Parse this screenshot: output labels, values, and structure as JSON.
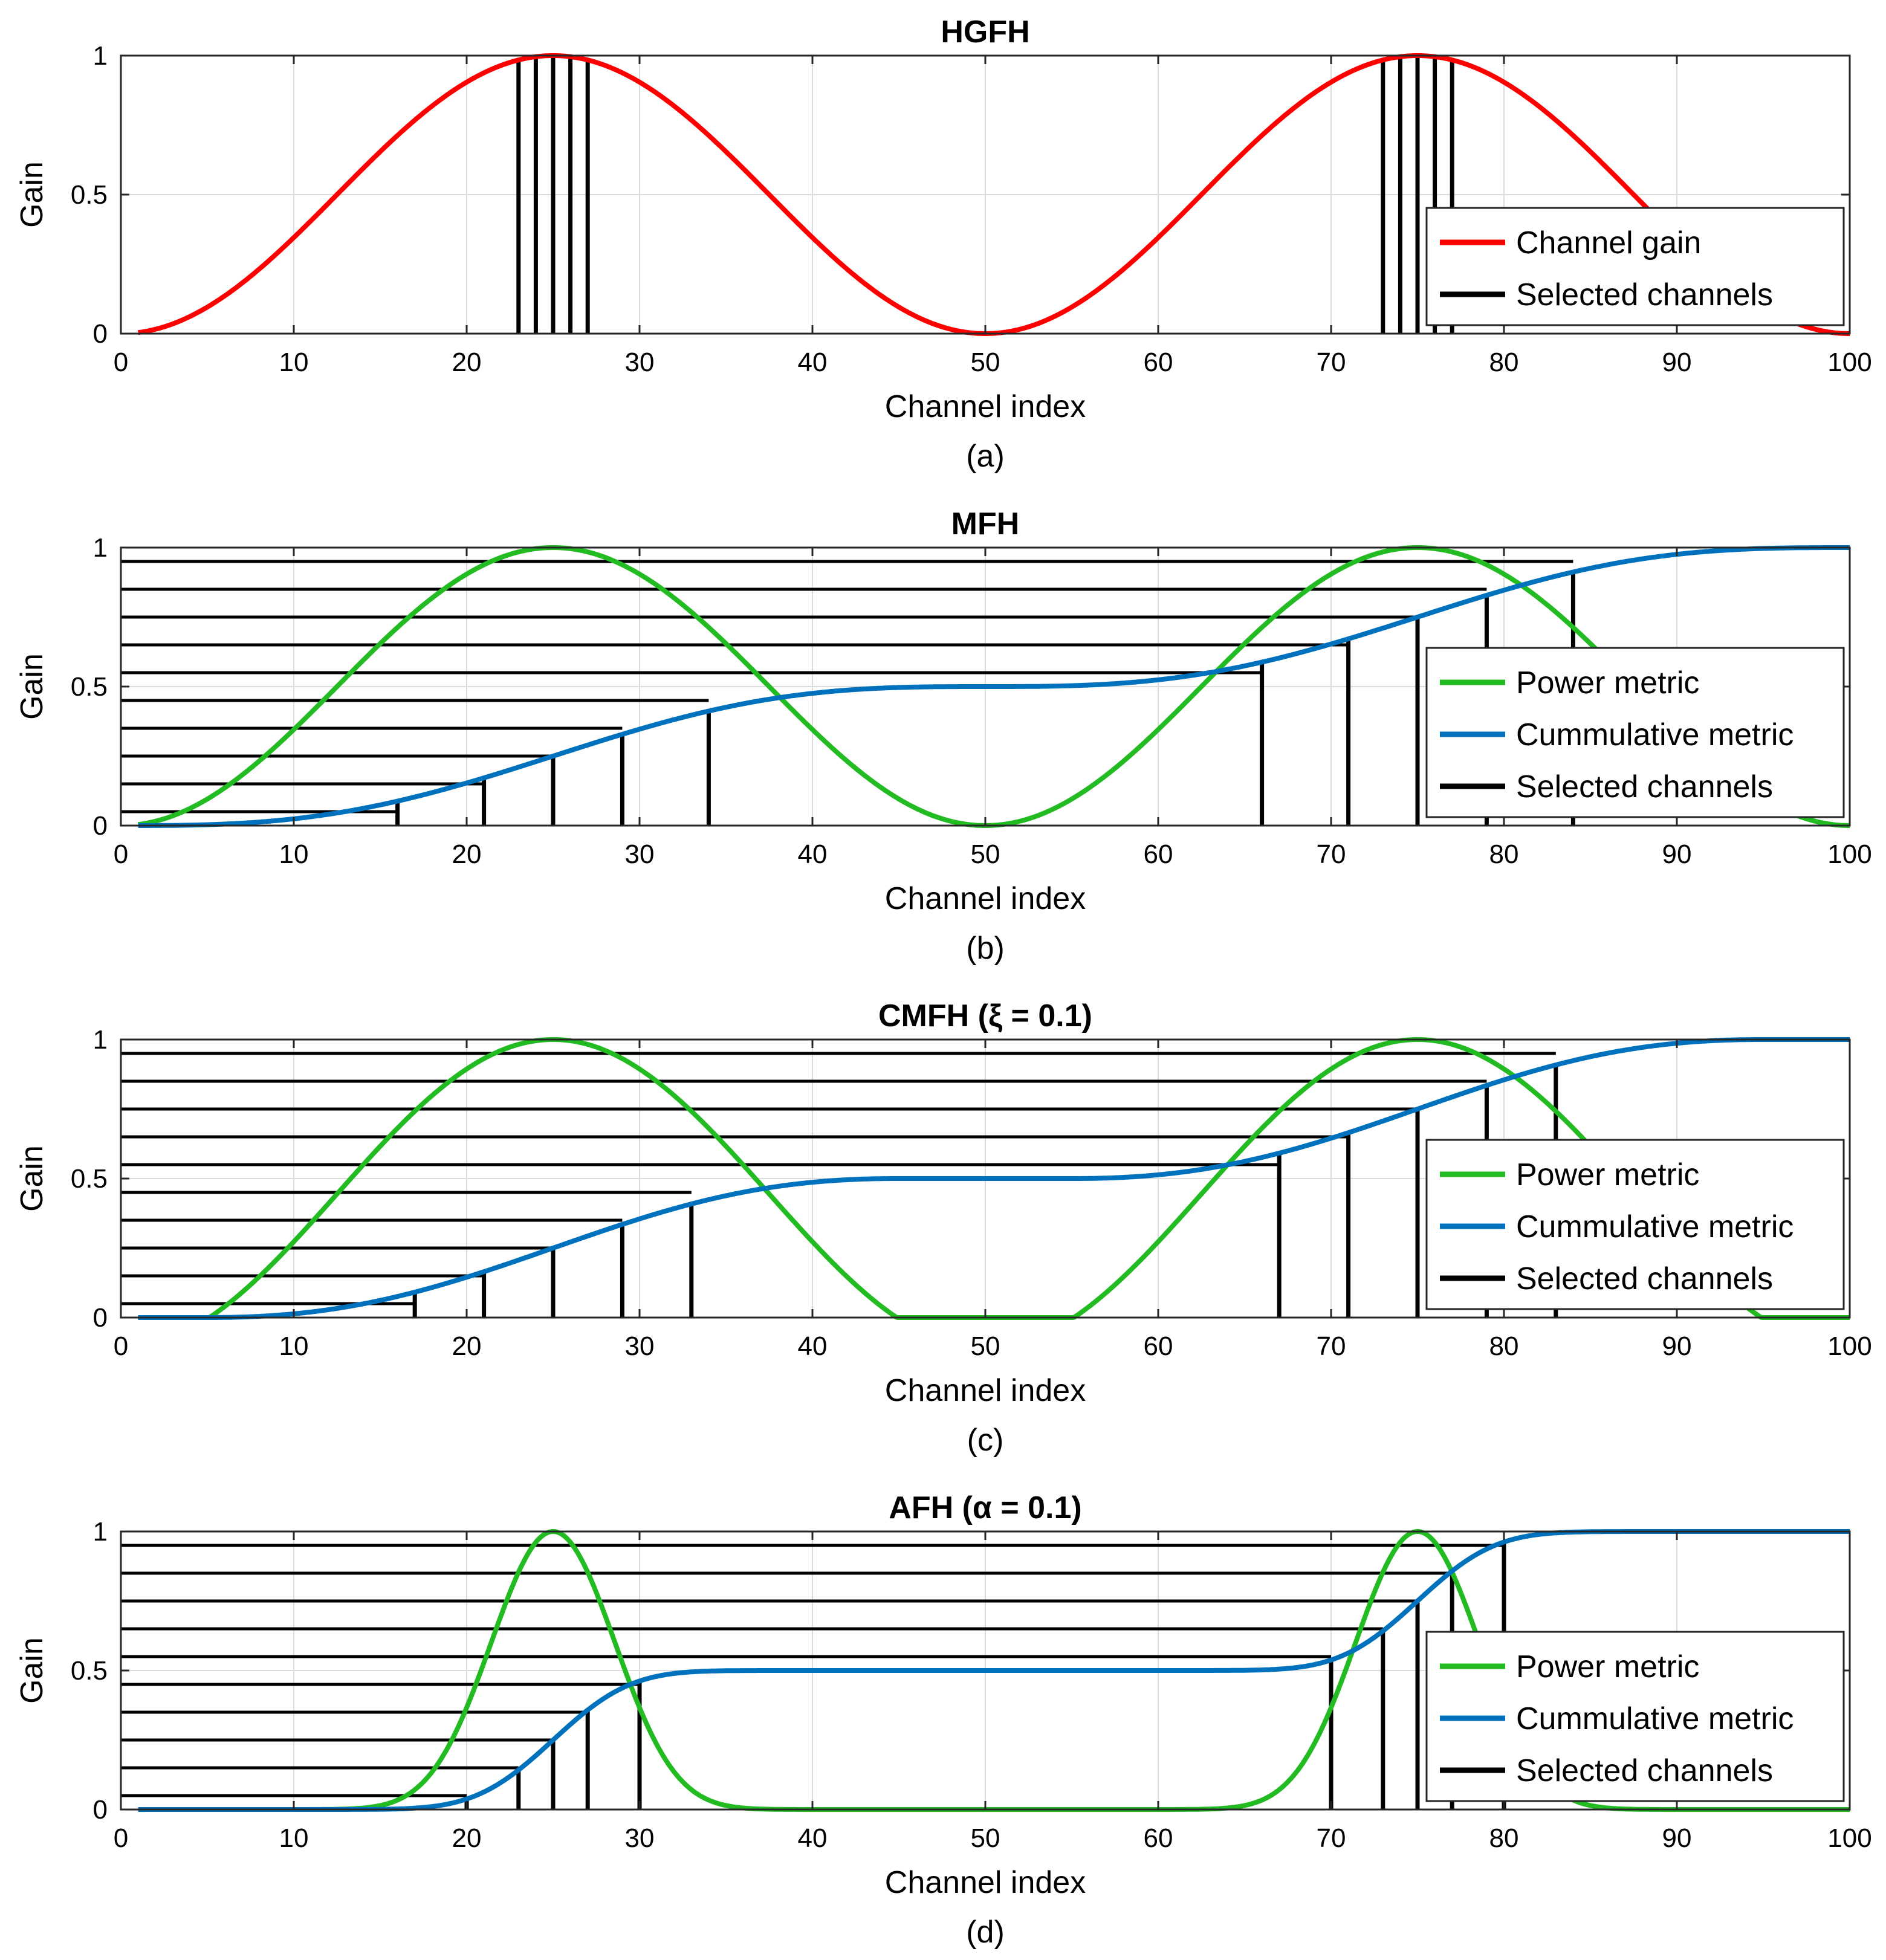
{
  "colors": {
    "red": "#ff0000",
    "green": "#22bb22",
    "blue": "#0072bd",
    "black": "#000000",
    "grid": "#dcdcdc"
  },
  "chart_data": [
    {
      "type": "line",
      "title": "HGFH",
      "caption": "(a)",
      "xlabel": "Channel index",
      "ylabel": "Gain",
      "xlim": [
        0,
        100
      ],
      "ylim": [
        0,
        1
      ],
      "xticks": [
        "0",
        "10",
        "20",
        "30",
        "40",
        "50",
        "60",
        "70",
        "80",
        "90",
        "100"
      ],
      "yticks": [
        "0",
        "0.5",
        "1"
      ],
      "grid": true,
      "legend_position": "bottom-right",
      "series": [
        {
          "name": "Channel gain",
          "role": "power",
          "color": "#ff0000",
          "curve": "two-hump-cosine",
          "sharpness": 1,
          "cutoff": 0
        },
        {
          "name": "Selected channels",
          "role": "selected",
          "color": "#000000",
          "stems": [
            23,
            24,
            25,
            26,
            27,
            73,
            74,
            75,
            76,
            77
          ]
        }
      ]
    },
    {
      "type": "line",
      "title": "MFH",
      "caption": "(b)",
      "xlabel": "Channel index",
      "ylabel": "Gain",
      "xlim": [
        0,
        100
      ],
      "ylim": [
        0,
        1
      ],
      "xticks": [
        "0",
        "10",
        "20",
        "30",
        "40",
        "50",
        "60",
        "70",
        "80",
        "90",
        "100"
      ],
      "yticks": [
        "0",
        "0.5",
        "1"
      ],
      "grid": true,
      "legend_position": "bottom-right",
      "levels": [
        0.05,
        0.15,
        0.25,
        0.35,
        0.45,
        0.55,
        0.65,
        0.75,
        0.85,
        0.95
      ],
      "series": [
        {
          "name": "Power metric",
          "role": "power",
          "color": "#22bb22",
          "curve": "two-hump-cosine",
          "sharpness": 1,
          "cutoff": 0
        },
        {
          "name": "Cummulative metric",
          "role": "cumulative",
          "color": "#0072bd"
        },
        {
          "name": "Selected channels",
          "role": "selected",
          "color": "#000000",
          "stems": [
            16,
            21,
            25,
            29,
            34,
            66,
            71,
            75,
            79,
            84
          ]
        }
      ]
    },
    {
      "type": "line",
      "title": "CMFH (ξ = 0.1)",
      "caption": "(c)",
      "xlabel": "Channel index",
      "ylabel": "Gain",
      "xlim": [
        0,
        100
      ],
      "ylim": [
        0,
        1
      ],
      "xticks": [
        "0",
        "10",
        "20",
        "30",
        "40",
        "50",
        "60",
        "70",
        "80",
        "90",
        "100"
      ],
      "yticks": [
        "0",
        "0.5",
        "1"
      ],
      "grid": true,
      "legend_position": "bottom-right",
      "levels": [
        0.05,
        0.15,
        0.25,
        0.35,
        0.45,
        0.55,
        0.65,
        0.75,
        0.85,
        0.95
      ],
      "series": [
        {
          "name": "Power metric",
          "role": "power",
          "color": "#22bb22",
          "curve": "two-hump-cosine",
          "sharpness": 1,
          "cutoff": 0.1
        },
        {
          "name": "Cummulative metric",
          "role": "cumulative",
          "color": "#0072bd"
        },
        {
          "name": "Selected channels",
          "role": "selected",
          "color": "#000000",
          "stems": [
            17,
            21,
            25,
            29,
            33,
            67,
            71,
            75,
            79,
            83
          ]
        }
      ]
    },
    {
      "type": "line",
      "title": "AFH (α = 0.1)",
      "caption": "(d)",
      "xlabel": "Channel index",
      "ylabel": "Gain",
      "xlim": [
        0,
        100
      ],
      "ylim": [
        0,
        1
      ],
      "xticks": [
        "0",
        "10",
        "20",
        "30",
        "40",
        "50",
        "60",
        "70",
        "80",
        "90",
        "100"
      ],
      "yticks": [
        "0",
        "0.5",
        "1"
      ],
      "grid": true,
      "legend_position": "bottom-right",
      "levels": [
        0.05,
        0.15,
        0.25,
        0.35,
        0.45,
        0.55,
        0.65,
        0.75,
        0.85,
        0.95
      ],
      "series": [
        {
          "name": "Power metric",
          "role": "power",
          "color": "#22bb22",
          "curve": "two-hump-cosine",
          "sharpness": 10,
          "cutoff": 0
        },
        {
          "name": "Cummulative metric",
          "role": "cumulative",
          "color": "#0072bd"
        },
        {
          "name": "Selected channels",
          "role": "selected",
          "color": "#000000",
          "stems": [
            20,
            23,
            25,
            27,
            30,
            70,
            73,
            75,
            77,
            80
          ]
        }
      ]
    }
  ]
}
